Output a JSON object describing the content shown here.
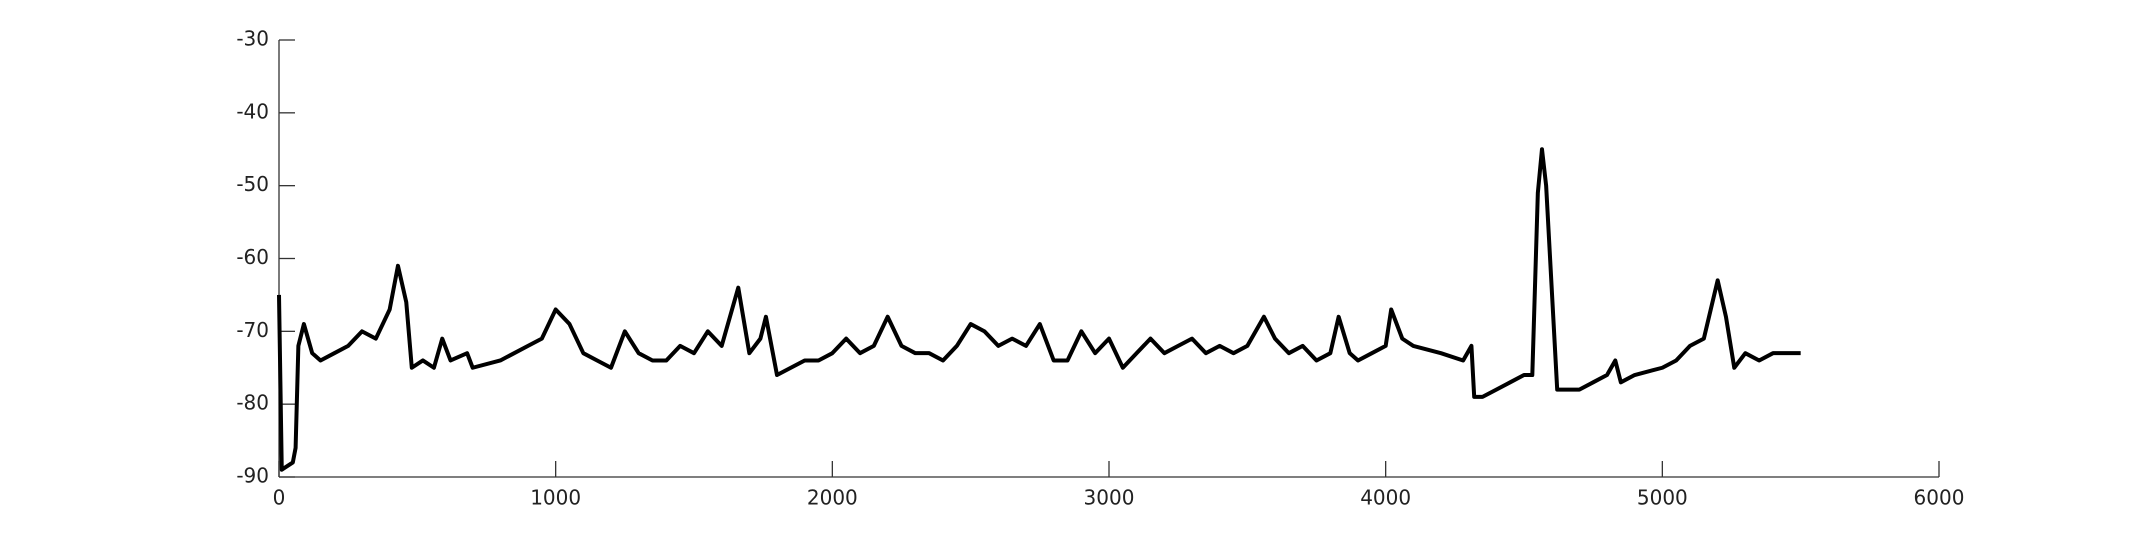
{
  "chart_data": {
    "type": "line",
    "x": [
      0,
      10,
      50,
      60,
      70,
      90,
      120,
      150,
      200,
      250,
      300,
      350,
      400,
      430,
      460,
      480,
      520,
      560,
      590,
      620,
      680,
      700,
      800,
      850,
      900,
      950,
      1000,
      1050,
      1100,
      1150,
      1200,
      1250,
      1300,
      1350,
      1400,
      1450,
      1500,
      1550,
      1600,
      1660,
      1700,
      1740,
      1760,
      1800,
      1850,
      1900,
      1950,
      2000,
      2050,
      2100,
      2150,
      2200,
      2250,
      2300,
      2350,
      2400,
      2450,
      2500,
      2550,
      2600,
      2650,
      2700,
      2750,
      2800,
      2850,
      2900,
      2950,
      3000,
      3050,
      3100,
      3150,
      3200,
      3250,
      3300,
      3350,
      3400,
      3450,
      3500,
      3560,
      3600,
      3650,
      3700,
      3750,
      3800,
      3830,
      3870,
      3900,
      3950,
      4000,
      4020,
      4060,
      4100,
      4200,
      4280,
      4310,
      4320,
      4350,
      4400,
      4450,
      4500,
      4530,
      4550,
      4565,
      4580,
      4620,
      4700,
      4750,
      4800,
      4830,
      4850,
      4900,
      5000,
      5050,
      5100,
      5150,
      5200,
      5230,
      5260,
      5300,
      5350,
      5400,
      5450,
      5500
    ],
    "series": [
      {
        "color": "#000000",
        "values": [
          -65,
          -89,
          -88,
          -86,
          -72,
          -69,
          -73,
          -74,
          -73,
          -72,
          -70,
          -71,
          -67,
          -61,
          -66,
          -75,
          -74,
          -75,
          -71,
          -74,
          -73,
          -75,
          -74,
          -73,
          -72,
          -71,
          -67,
          -69,
          -73,
          -74,
          -75,
          -70,
          -73,
          -74,
          -74,
          -72,
          -73,
          -70,
          -72,
          -64,
          -73,
          -71,
          -68,
          -76,
          -75,
          -74,
          -74,
          -73,
          -71,
          -73,
          -72,
          -68,
          -72,
          -73,
          -73,
          -74,
          -72,
          -69,
          -70,
          -72,
          -71,
          -72,
          -69,
          -74,
          -74,
          -70,
          -73,
          -71,
          -75,
          -73,
          -71,
          -73,
          -72,
          -71,
          -73,
          -72,
          -73,
          -72,
          -68,
          -71,
          -73,
          -72,
          -74,
          -73,
          -68,
          -73,
          -74,
          -73,
          -72,
          -67,
          -71,
          -72,
          -73,
          -74,
          -72,
          -79,
          -79,
          -78,
          -77,
          -76,
          -76,
          -51,
          -45,
          -50,
          -78,
          -78,
          -77,
          -76,
          -74,
          -77,
          -76,
          -75,
          -74,
          -72,
          -71,
          -63,
          -68,
          -75,
          -73,
          -74,
          -73,
          -73,
          -73
        ]
      }
    ],
    "xlim": [
      0,
      6000
    ],
    "xticks": [
      0,
      1000,
      2000,
      3000,
      4000,
      5000,
      6000
    ],
    "ylim": [
      -90,
      -30
    ],
    "yticks": [
      -90,
      -80,
      -70,
      -60,
      -50,
      -40,
      -30
    ]
  }
}
